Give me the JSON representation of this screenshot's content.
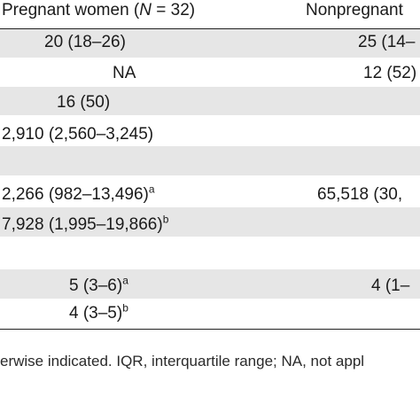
{
  "header": {
    "col_pregnant": "Pregnant women (",
    "col_pregnant_n": "N",
    "col_pregnant_tail": " = 32)",
    "col_nonpregnant": "Nonpregnant"
  },
  "rows": [
    {
      "pregnant": "20 (18–26)",
      "pregnant_sup": "",
      "nonpregnant": "25 (14–",
      "nonpregnant_sup": ""
    },
    {
      "pregnant": "NA",
      "pregnant_sup": "",
      "nonpregnant": "12 (52)",
      "nonpregnant_sup": ""
    },
    {
      "pregnant": "16 (50)",
      "pregnant_sup": "",
      "nonpregnant": "",
      "nonpregnant_sup": ""
    },
    {
      "pregnant": "2,910 (2,560–3,245)",
      "pregnant_sup": "",
      "nonpregnant": "",
      "nonpregnant_sup": ""
    },
    {
      "pregnant": "",
      "pregnant_sup": "",
      "nonpregnant": "",
      "nonpregnant_sup": ""
    },
    {
      "pregnant": "2,266 (982–13,496)",
      "pregnant_sup": "a",
      "nonpregnant": "65,518 (30,",
      "nonpregnant_sup": ""
    },
    {
      "pregnant": "7,928 (1,995–19,866)",
      "pregnant_sup": "b",
      "nonpregnant": "",
      "nonpregnant_sup": ""
    },
    {
      "pregnant": "",
      "pregnant_sup": "",
      "nonpregnant": "",
      "nonpregnant_sup": ""
    },
    {
      "pregnant": "5 (3–6)",
      "pregnant_sup": "a",
      "nonpregnant": "4 (1–",
      "nonpregnant_sup": ""
    },
    {
      "pregnant": "4 (3–5)",
      "pregnant_sup": "b",
      "nonpregnant": "",
      "nonpregnant_sup": ""
    }
  ],
  "footnote": "erwise indicated. IQR, interquartile range; NA, not appl"
}
